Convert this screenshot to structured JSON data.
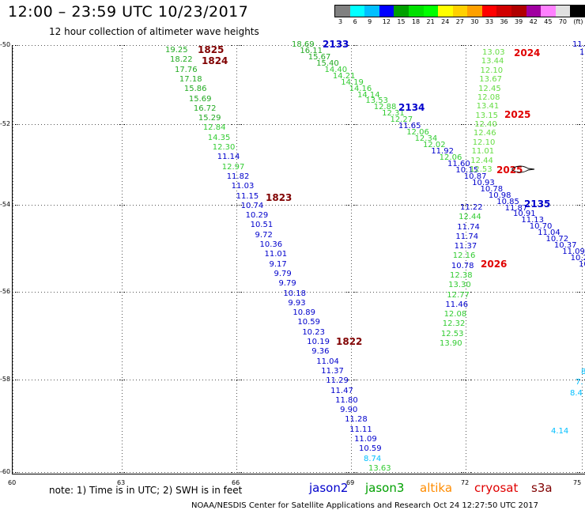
{
  "title": "12:00 – 23:59 UTC 10/23/2017",
  "subtitle": "12 hour collection of altimeter wave heights",
  "lat_labels": [
    "-50",
    "-52",
    "-54",
    "-56",
    "-58",
    "-60"
  ],
  "lon_labels": [
    "60",
    "63",
    "66",
    "69",
    "72",
    "75"
  ],
  "scale": {
    "labels": [
      "3",
      "6",
      "9",
      "12",
      "15",
      "18",
      "21",
      "24",
      "27",
      "30",
      "33",
      "36",
      "39",
      "42",
      "45",
      "70",
      "(ft)"
    ],
    "colors": [
      "#808080",
      "#00ffff",
      "#00bfff",
      "#0000ff",
      "#00a000",
      "#00e000",
      "#00ff00",
      "#ffff00",
      "#ffd000",
      "#ffa000",
      "#ff0000",
      "#d00000",
      "#b00000",
      "#a000a0",
      "#ff80ff",
      "#e0e0e0",
      "#000000"
    ]
  },
  "tracks": [
    {
      "id": "t1825",
      "label": "1825",
      "color": "#800000"
    },
    {
      "id": "t1824",
      "label": "1824",
      "color": "#800000"
    },
    {
      "id": "t1823",
      "label": "1823",
      "color": "#800000"
    },
    {
      "id": "t1822",
      "label": "1822",
      "color": "#800000"
    },
    {
      "id": "t2133",
      "label": "2133",
      "color": "#0000cc"
    },
    {
      "id": "t2134",
      "label": "2134",
      "color": "#0000cc"
    },
    {
      "id": "t2135",
      "label": "2135",
      "color": "#0000cc"
    },
    {
      "id": "t2024",
      "label": "2024",
      "color": "#e00000"
    },
    {
      "id": "t2025a",
      "label": "2025",
      "color": "#e00000"
    },
    {
      "id": "t2025b",
      "label": "2025",
      "color": "#e00000"
    },
    {
      "id": "t2026",
      "label": "2026",
      "color": "#e00000"
    }
  ],
  "swh_points": {
    "track_18": [
      "19.25",
      "18.22",
      "17.76",
      "17.18",
      "15.86",
      "15.69",
      "16.72",
      "15.29",
      "12.84",
      "14.35",
      "12.30",
      "11.14",
      "12.97",
      "11.82",
      "11.03",
      "11.15",
      "10.74",
      "10.29",
      "10.51",
      "9.72",
      "10.36",
      "11.01",
      "9.17",
      "9.79",
      "9.79",
      "10.18",
      "9.93",
      "10.89",
      "10.59",
      "10.23",
      "10.19",
      "9.36",
      "11.04",
      "11.37",
      "11.29",
      "11.47",
      "11.80",
      "9.90",
      "11.28",
      "11.11",
      "11.09",
      "10.59",
      "8.74",
      "13.63"
    ],
    "track_21_upper": [
      "18.69",
      "16.11",
      "15.67",
      "15.40",
      "14.40",
      "14.21",
      "14.19",
      "14.16",
      "14.14",
      "13.53",
      "12.88",
      "12.31",
      "12.27",
      "11.65",
      "12.06",
      "12.34",
      "12.02",
      "11.92",
      "12.06",
      "11.60",
      "10.15",
      "10.87",
      "10.93",
      "10.78",
      "10.98",
      "10.85",
      "11.87",
      "10.91",
      "11.13",
      "10.70",
      "11.04",
      "10.72",
      "10.37",
      "11.09",
      "10.2",
      "10"
    ],
    "track_20_upper": [
      "13.03",
      "13.44",
      "12.10",
      "13.67",
      "12.45",
      "12.08",
      "13.41",
      "13.15",
      "12.40",
      "12.46",
      "12.10",
      "11.01",
      "12.44",
      "12.53"
    ],
    "track_20_lower": [
      "11.22",
      "12.44",
      "11.74",
      "11.74",
      "11.37",
      "12.16",
      "10.78",
      "12.38",
      "13.30",
      "12.77",
      "11.46",
      "12.08",
      "12.32",
      "12.53",
      "13.90"
    ],
    "right_edge": [
      "11.",
      "1",
      "8",
      "7.",
      "8.4",
      "4.14"
    ]
  },
  "legend": {
    "note": "note:  1) Time is in UTC;  2) SWH is in feet",
    "items": [
      {
        "label": "jason2",
        "color": "#0000cc"
      },
      {
        "label": "jason3",
        "color": "#00a000"
      },
      {
        "label": "altika",
        "color": "#ff8c00"
      },
      {
        "label": "cryosat",
        "color": "#e00000"
      },
      {
        "label": "s3a",
        "color": "#800000"
      }
    ]
  },
  "footer": "NOAA/NESDIS Center for Satellite Applications and Research     Oct 24 12:27:50 UTC 2017"
}
